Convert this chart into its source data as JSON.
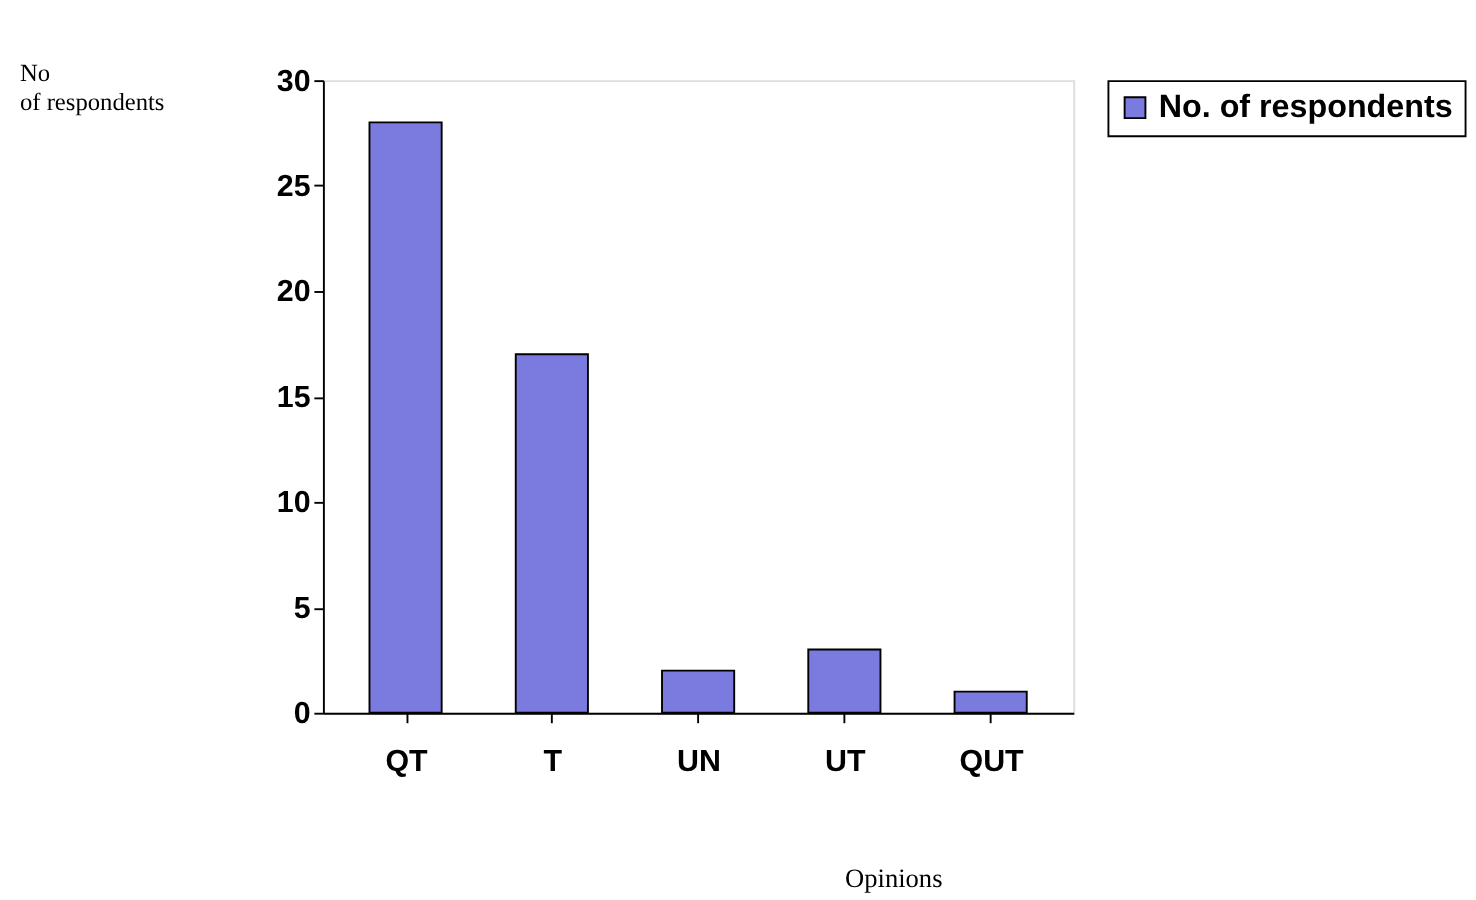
{
  "chart_data": {
    "type": "bar",
    "categories": [
      "QT",
      "T",
      "UN",
      "UT",
      "QUT"
    ],
    "series": [
      {
        "name": "No. of respondents",
        "color": "#7b7bdf",
        "values": [
          28,
          17,
          2,
          3,
          1
        ]
      }
    ],
    "xlabel": "Opinions",
    "ylabel": "No of respondents",
    "ylim": [
      0,
      30
    ],
    "yticks": [
      0,
      5,
      10,
      15,
      20,
      25,
      30
    ],
    "grid": false,
    "legend": "right"
  }
}
